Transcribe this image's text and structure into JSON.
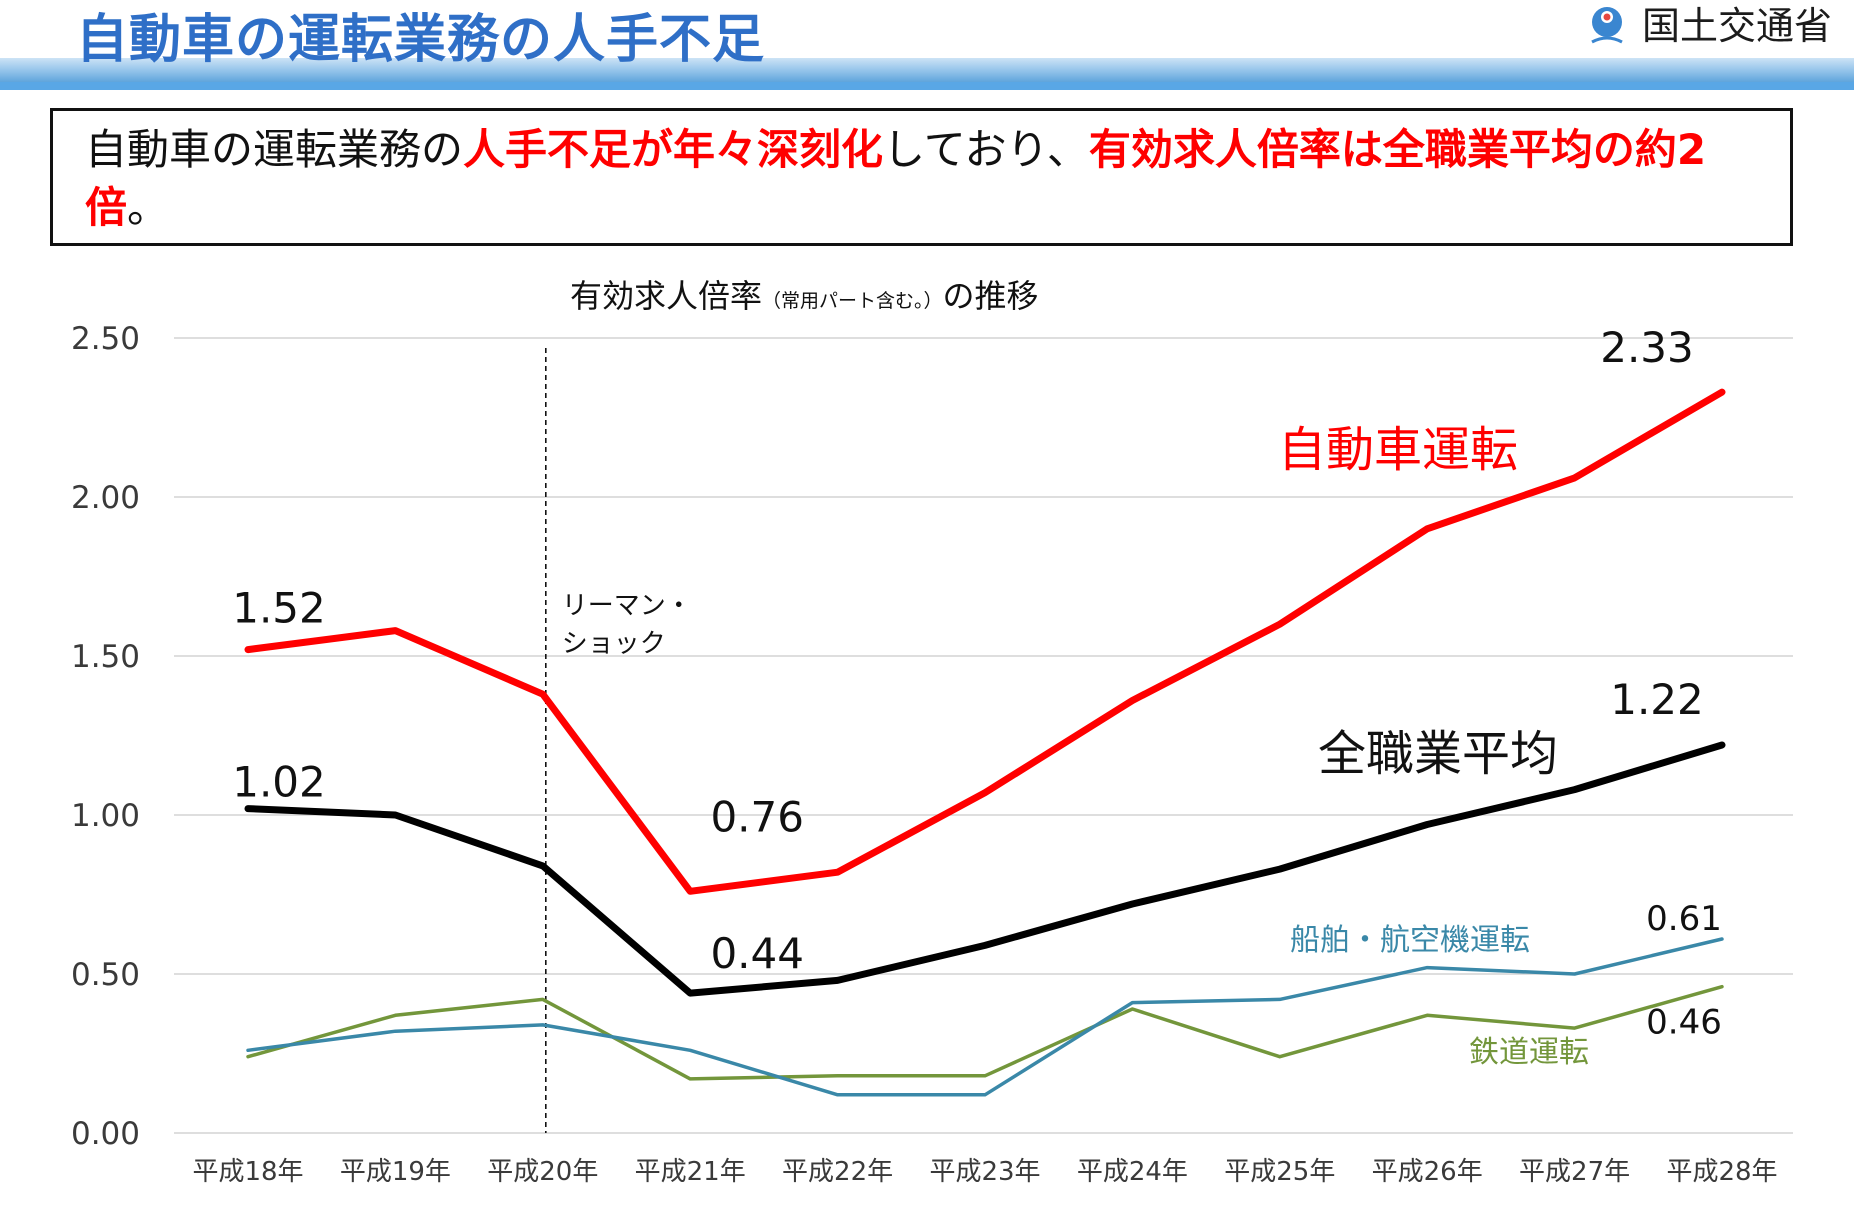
{
  "header": {
    "title": "自動車の運転業務の人手不足",
    "ministry": "国土交通省",
    "logo_icon": "mlit-logo-icon"
  },
  "summary": {
    "part1": "自動車の運転業務の",
    "part2": "人手不足が年々深刻化",
    "part3": "しており、",
    "part4": "有効求人倍率は全職業平均の約2倍",
    "part5": "。"
  },
  "colors": {
    "title_blue": "#2f6fc7",
    "highlight_red": "#ff0000",
    "auto_driving": "#ff0000",
    "all_jobs": "#000000",
    "ship_air": "#3a88a8",
    "railway": "#73963b"
  },
  "chart_data": {
    "type": "line",
    "title": "有効求人倍率",
    "title_note": "（常用パート含む。）",
    "title_suffix": "の推移",
    "categories": [
      "平成18年",
      "平成19年",
      "平成20年",
      "平成21年",
      "平成22年",
      "平成23年",
      "平成24年",
      "平成25年",
      "平成26年",
      "平成27年",
      "平成28年"
    ],
    "ylim": [
      0,
      2.5
    ],
    "yticks": [
      "0.00",
      "0.50",
      "1.00",
      "1.50",
      "2.00",
      "2.50"
    ],
    "ytick_values": [
      0,
      0.5,
      1.0,
      1.5,
      2.0,
      2.5
    ],
    "grid": true,
    "series": [
      {
        "name": "自動車運転",
        "key": "auto",
        "values": [
          1.52,
          1.58,
          1.38,
          0.76,
          0.82,
          1.07,
          1.36,
          1.6,
          1.9,
          2.06,
          2.33
        ]
      },
      {
        "name": "全職業平均",
        "key": "all",
        "values": [
          1.02,
          1.0,
          0.84,
          0.44,
          0.48,
          0.59,
          0.72,
          0.83,
          0.97,
          1.08,
          1.22
        ]
      },
      {
        "name": "船舶・航空機運転",
        "key": "ship",
        "values": [
          0.26,
          0.32,
          0.34,
          0.26,
          0.12,
          0.12,
          0.41,
          0.42,
          0.52,
          0.5,
          0.61
        ]
      },
      {
        "name": "鉄道運転",
        "key": "rail",
        "values": [
          0.24,
          0.37,
          0.42,
          0.17,
          0.18,
          0.18,
          0.39,
          0.24,
          0.37,
          0.33,
          0.46
        ]
      }
    ],
    "data_labels": {
      "auto_start": "1.52",
      "auto_min": "0.76",
      "auto_end": "2.33",
      "all_start": "1.02",
      "all_min": "0.44",
      "all_end": "1.22",
      "ship_end": "0.61",
      "rail_end": "0.46"
    },
    "annotation": {
      "line1": "リーマン・",
      "line2": "ショック",
      "at_category": "平成20年"
    }
  }
}
